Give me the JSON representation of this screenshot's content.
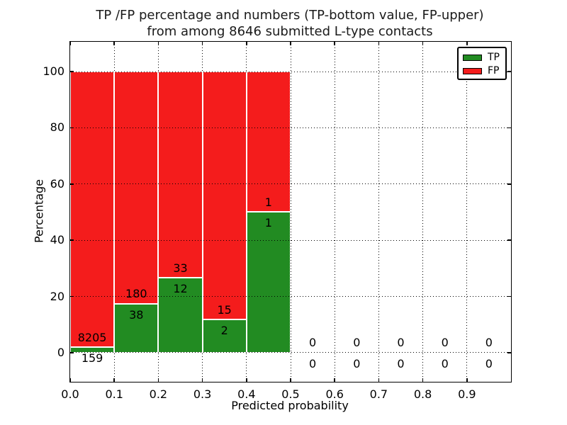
{
  "figure": {
    "background": "#ffffff"
  },
  "chart_data": {
    "type": "bar",
    "stacked": true,
    "title_line1": "TP /FP percentage and numbers (TP-bottom value, FP-upper)",
    "title_line2": "from among 8646 submitted L-type contacts",
    "xlabel": "Predicted probability",
    "ylabel": "Percentage",
    "total_submitted_contacts": 8646,
    "xlim": [
      0.0,
      1.0
    ],
    "ylim": [
      -10.33,
      110.58
    ],
    "xtick_labels": [
      "0.0",
      "0.1",
      "0.2",
      "0.3",
      "0.4",
      "0.5",
      "0.6",
      "0.7",
      "0.8",
      "0.9"
    ],
    "xtick_values": [
      0,
      0.1,
      0.2,
      0.3,
      0.4,
      0.5,
      0.6,
      0.7,
      0.8,
      0.9
    ],
    "ytick_labels": [
      "0",
      "20",
      "40",
      "60",
      "80",
      "100"
    ],
    "ytick_values": [
      0,
      20,
      40,
      60,
      80,
      100
    ],
    "grid": "dotted-black",
    "colors": {
      "tp": "#228b22",
      "fp": "#f41c1c"
    },
    "legend": {
      "position": "upper-right",
      "items": [
        {
          "label": "TP",
          "color": "#228b22"
        },
        {
          "label": "FP",
          "color": "#f41c1c"
        }
      ]
    },
    "bins": [
      {
        "range": [
          0.0,
          0.1
        ],
        "tp": 159,
        "fp": 8205
      },
      {
        "range": [
          0.1,
          0.2
        ],
        "tp": 38,
        "fp": 180
      },
      {
        "range": [
          0.2,
          0.3
        ],
        "tp": 12,
        "fp": 33
      },
      {
        "range": [
          0.3,
          0.4
        ],
        "tp": 2,
        "fp": 15
      },
      {
        "range": [
          0.4,
          0.5
        ],
        "tp": 1,
        "fp": 1
      },
      {
        "range": [
          0.5,
          0.6
        ],
        "tp": 0,
        "fp": 0
      },
      {
        "range": [
          0.6,
          0.7
        ],
        "tp": 0,
        "fp": 0
      },
      {
        "range": [
          0.7,
          0.8
        ],
        "tp": 0,
        "fp": 0
      },
      {
        "range": [
          0.8,
          0.9
        ],
        "tp": 0,
        "fp": 0
      },
      {
        "range": [
          0.9,
          1.0
        ],
        "tp": 0,
        "fp": 0
      }
    ]
  }
}
